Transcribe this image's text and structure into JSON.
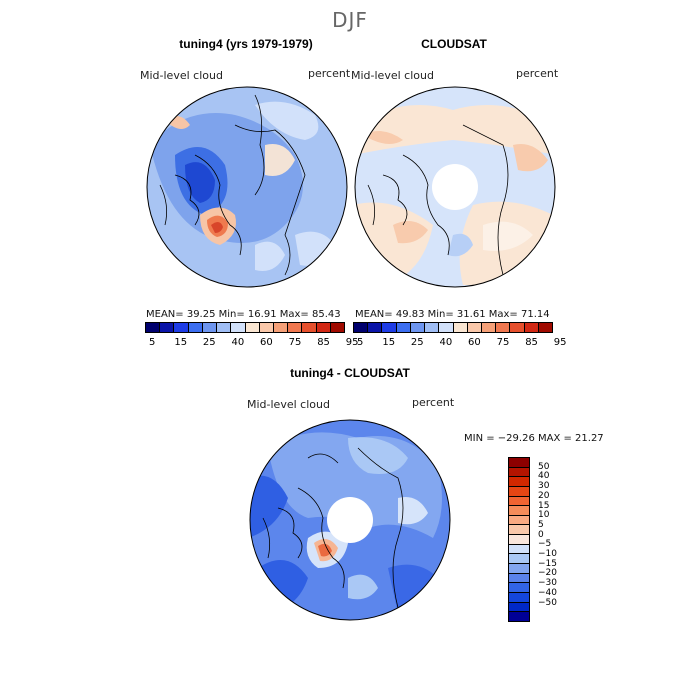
{
  "figure_title": "DJF",
  "panels": {
    "model": {
      "title": "tuning4 (yrs 1979-1979)",
      "left_label": "Mid-level cloud",
      "right_label": "percent",
      "stats": "MEAN=   39.25   Min=   16.91    Max=   85.43"
    },
    "obs": {
      "title": "CLOUDSAT",
      "left_label": "Mid-level cloud",
      "right_label": "percent",
      "stats": "MEAN=   49.83   Min=   31.61    Max=   71.14"
    },
    "diff": {
      "title": "tuning4 - CLOUDSAT",
      "left_label": "Mid-level cloud",
      "right_label": "percent",
      "stats": "MIN = −29.26  MAX =   21.27"
    }
  },
  "abs_colorbar": {
    "colors": [
      "#00006e",
      "#0a14a8",
      "#1e3ce6",
      "#3c6ef0",
      "#6e96f0",
      "#a0bef5",
      "#d2e1fa",
      "#fae6d2",
      "#fac8aa",
      "#f5a078",
      "#f07850",
      "#e6502d",
      "#d22814",
      "#a00a00"
    ],
    "tick_labels": [
      "5",
      "15",
      "25",
      "40",
      "60",
      "75",
      "85",
      "95"
    ]
  },
  "diff_colorbar": {
    "colors": [
      "#8c0000",
      "#b41400",
      "#d22800",
      "#e64614",
      "#f06432",
      "#f58c5a",
      "#faaa82",
      "#fac8aa",
      "#fae6dc",
      "#d2e1fa",
      "#aac8f5",
      "#82a5f0",
      "#5a82eb",
      "#3264e6",
      "#1446dc",
      "#0028c8",
      "#000096"
    ],
    "tick_labels": [
      "50",
      "40",
      "30",
      "20",
      "15",
      "10",
      "5",
      "0",
      "−5",
      "−10",
      "−15",
      "−20",
      "−30",
      "−40",
      "−50"
    ]
  }
}
